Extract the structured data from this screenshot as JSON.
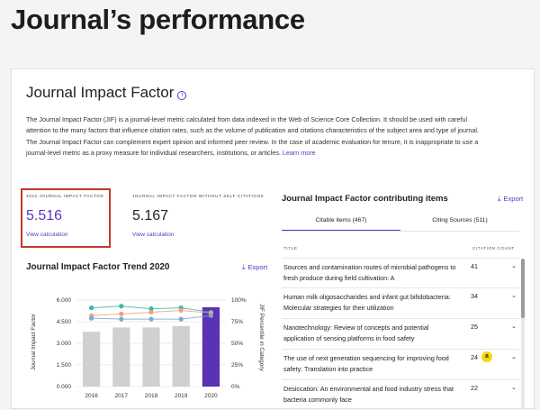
{
  "page_title": "Journal’s performance",
  "card": {
    "title": "Journal Impact Factor",
    "description": "The Journal Impact Factor (JIF) is a journal-level metric calculated from data indexed in the Web of Science Core Collection. It should be used with careful attention to the many factors that influence citation rates, such as the volume of publication and citations characteristics of the subject area and type of journal. The Journal Impact Factor can complement expert opinion and informed peer review. In the case of academic evaluation for tenure, it is inappropriate to use a journal-level metric as a proxy measure for individual researchers, institutions, or articles.",
    "learn_more": "Learn more"
  },
  "metrics": {
    "jif": {
      "label": "2022 JOURNAL IMPACT FACTOR",
      "value": "5.516",
      "link": "View calculation"
    },
    "jif_no_self": {
      "label": "JOURNAL IMPACT FACTOR WITHOUT SELF CITATIONS",
      "value": "5.167",
      "link": "View calculation"
    }
  },
  "trend": {
    "title": "Journal Impact Factor Trend 2020",
    "export": "Export"
  },
  "contributing": {
    "title": "Journal Impact Factor contributing items",
    "export": "Export",
    "tabs": [
      {
        "label": "Citable items (467)",
        "active": true
      },
      {
        "label": "Citing Sources (511)",
        "active": false
      }
    ],
    "columns": {
      "title": "TITLE",
      "count": "CITATION COUNT"
    },
    "rows": [
      {
        "title": "Sources and contamination routes of microbial pathogens to fresh produce during field cultivation: A",
        "count": "41"
      },
      {
        "title": "Human milk oligosaccharides and infant gut bifidobacteria: Molecular strategies for their utilization",
        "count": "34"
      },
      {
        "title": "Nanotechnology: Review of concepts and potential application of sensing platforms in food safety",
        "count": "25"
      },
      {
        "title": "The use of next generation sequencing for improving food safety: Translation into practice",
        "count": "24",
        "altmetric": true
      },
      {
        "title": "Desiccation: An environmental and food industry stress that bacteria commonly face",
        "count": "22"
      }
    ]
  },
  "icons": {
    "info": "info-icon",
    "download": "download-icon",
    "chevron": "chevron-down-icon",
    "altmetric": "altmetric-icon"
  },
  "colors": {
    "accent": "#5e33bf",
    "highlight_box": "#c0392b",
    "bar_gray": "#d0d0d0",
    "bar_current": "#5a32b4",
    "line_teal": "#3bb7a4",
    "line_orange": "#f0a27a",
    "line_blue": "#7aa8d6"
  },
  "chart_data": {
    "type": "bar",
    "categories": [
      "2016",
      "2017",
      "2018",
      "2019",
      "2020"
    ],
    "series": [
      {
        "values": [
          3.8,
          4.1,
          4.1,
          4.2,
          5.5
        ],
        "kind": "bar"
      },
      {
        "values": [
          91,
          93,
          90,
          91,
          86
        ],
        "kind": "line",
        "axis": "right",
        "color": "#3bb7a4"
      },
      {
        "values": [
          82,
          84,
          86,
          88,
          85
        ],
        "kind": "line",
        "axis": "right",
        "color": "#f0a27a"
      },
      {
        "values": [
          79,
          78,
          78,
          78,
          82
        ],
        "kind": "line",
        "axis": "right",
        "color": "#7aa8d6"
      }
    ],
    "ylabel": "Journal Impact Factor",
    "y2label": "JIF Percentile in Category",
    "ylim": [
      0,
      6
    ],
    "y2lim": [
      0,
      100
    ],
    "yticks": [
      "0.000",
      "1.500",
      "3.000",
      "4.500",
      "6.000"
    ],
    "y2ticks": [
      "0%",
      "25%",
      "50%",
      "75%",
      "100%"
    ]
  }
}
